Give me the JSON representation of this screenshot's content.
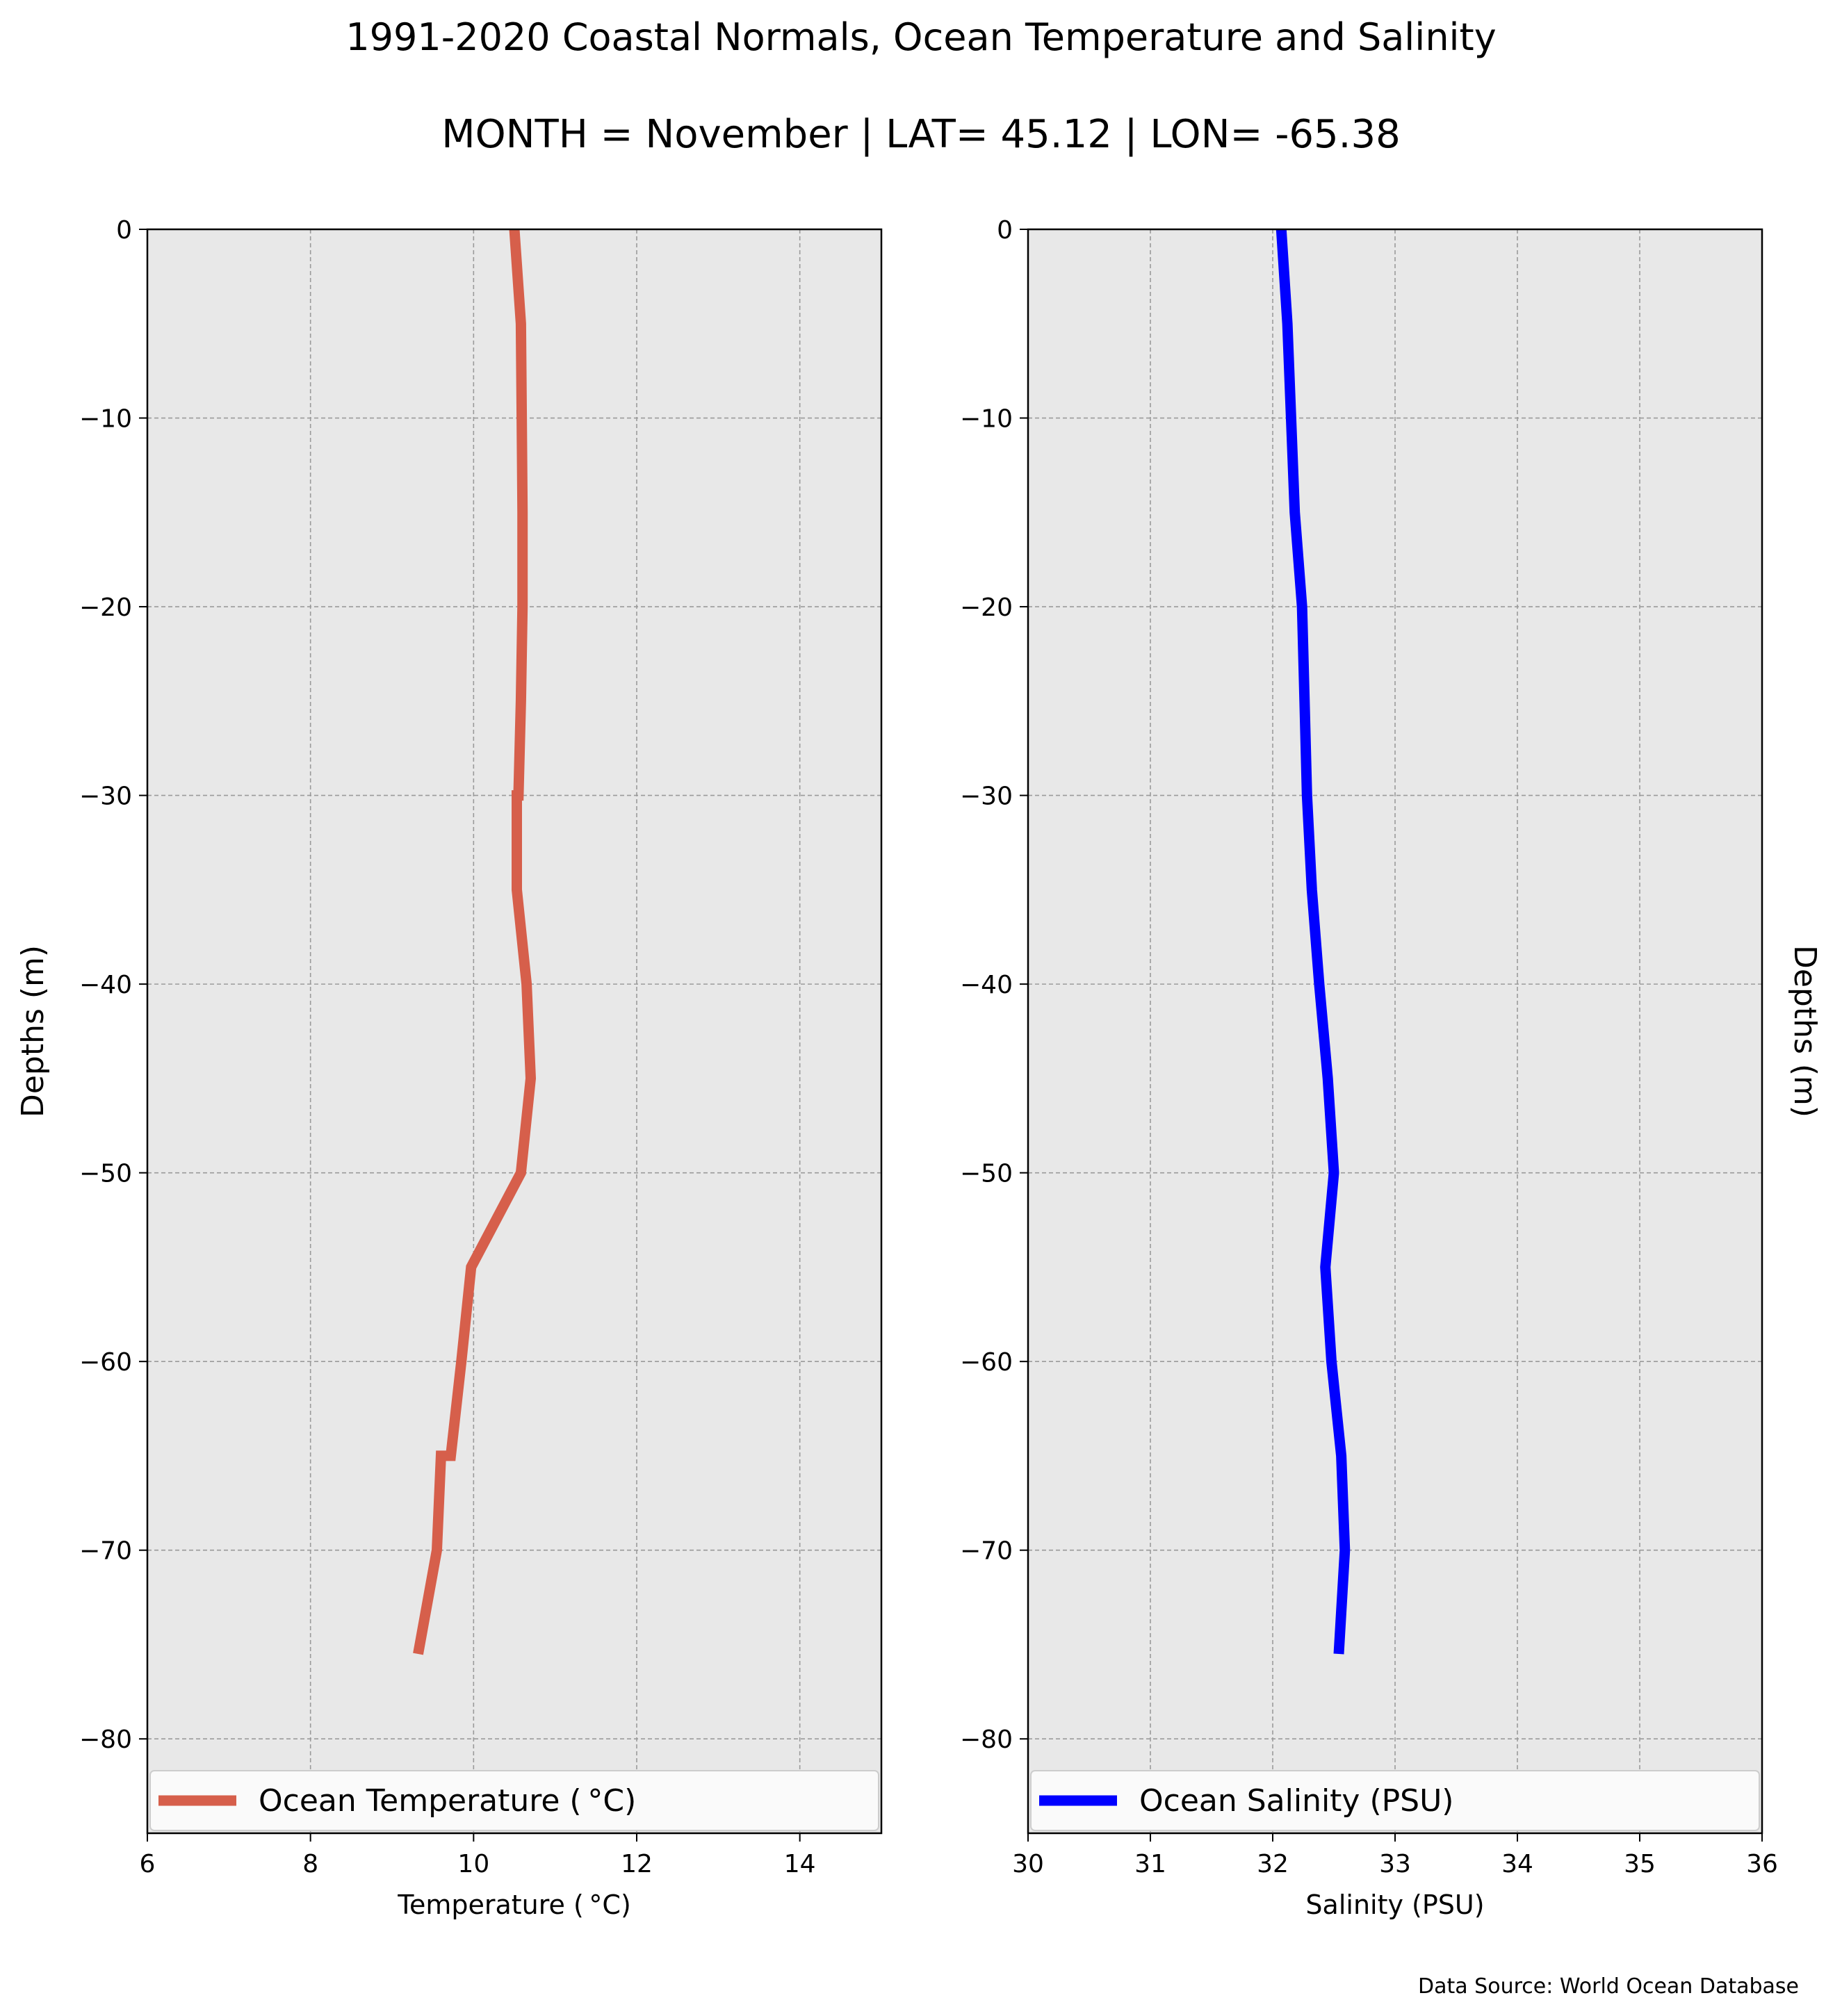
{
  "title_line1": "1991-2020 Coastal Normals, Ocean Temperature and Salinity",
  "title_line2": "MONTH = November | LAT= 45.12 | LON= -65.38",
  "footer": "Data Source: World Ocean Database",
  "chart_data": [
    {
      "type": "line",
      "xlabel": "Temperature ( °C)",
      "ylabel": "Depths (m)",
      "xlim": [
        6,
        15
      ],
      "ylim": [
        -85,
        0
      ],
      "xticks": [
        6,
        8,
        10,
        12,
        14
      ],
      "xtick_labels": [
        "6",
        "8",
        "10",
        "12",
        "14"
      ],
      "yticks": [
        0,
        -10,
        -20,
        -30,
        -40,
        -50,
        -60,
        -70,
        -80
      ],
      "ytick_labels": [
        "0",
        "−10",
        "−20",
        "−30",
        "−40",
        "−50",
        "−60",
        "−70",
        "−80"
      ],
      "grid": true,
      "legend_position": "bottom",
      "ylabel_side": "left",
      "series": [
        {
          "name": "Ocean Temperature ( °C)",
          "color": "#d65f4b",
          "x": [
            10.5,
            10.58,
            10.59,
            10.6,
            10.6,
            10.58,
            10.55,
            10.53,
            10.53,
            10.65,
            10.7,
            10.58,
            9.97,
            9.85,
            9.72,
            9.6,
            9.55,
            9.32
          ],
          "y": [
            0,
            -5,
            -10,
            -15,
            -20,
            -25,
            -30,
            -30,
            -35,
            -40,
            -45,
            -50,
            -55,
            -60,
            -65,
            -65,
            -70,
            -75.5
          ]
        }
      ]
    },
    {
      "type": "line",
      "xlabel": "Salinity (PSU)",
      "ylabel": "Depths (m)",
      "xlim": [
        30,
        36
      ],
      "ylim": [
        -85,
        0
      ],
      "xticks": [
        30,
        31,
        32,
        33,
        34,
        35,
        36
      ],
      "xtick_labels": [
        "30",
        "31",
        "32",
        "33",
        "34",
        "35",
        "36"
      ],
      "yticks": [
        0,
        -10,
        -20,
        -30,
        -40,
        -50,
        -60,
        -70,
        -80
      ],
      "ytick_labels": [
        "0",
        "−10",
        "−20",
        "−30",
        "−40",
        "−50",
        "−60",
        "−70",
        "−80"
      ],
      "grid": true,
      "legend_position": "bottom",
      "ylabel_side": "right",
      "series": [
        {
          "name": "Ocean Salinity (PSU)",
          "color": "#0000ff",
          "x": [
            32.07,
            32.12,
            32.15,
            32.18,
            32.24,
            32.26,
            32.28,
            32.32,
            32.38,
            32.45,
            32.5,
            32.43,
            32.48,
            32.56,
            32.59,
            32.54
          ],
          "y": [
            0,
            -5,
            -10,
            -15,
            -20,
            -25,
            -30,
            -35,
            -40,
            -45,
            -50,
            -55,
            -60,
            -65,
            -70,
            -75.5
          ]
        }
      ]
    }
  ]
}
